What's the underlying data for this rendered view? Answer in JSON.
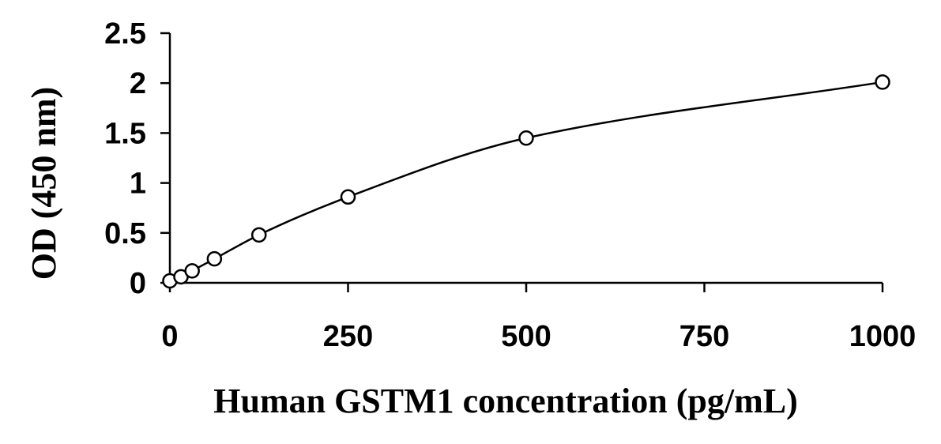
{
  "chart_data": {
    "type": "scatter",
    "title": "",
    "xlabel": "Human GSTM1 concentration (pg/mL)",
    "ylabel": "OD (450 nm)",
    "xlim": [
      0,
      1000
    ],
    "ylim": [
      0,
      2.5
    ],
    "xticks": [
      0,
      250,
      500,
      750,
      1000
    ],
    "yticks": [
      0,
      0.5,
      1,
      1.5,
      2,
      2.5
    ],
    "grid": false,
    "legend": "none",
    "series": [
      {
        "x": [
          0,
          15.6,
          31.25,
          62.5,
          125,
          250,
          500,
          1000
        ],
        "y": [
          0.02,
          0.06,
          0.12,
          0.24,
          0.48,
          0.86,
          1.45,
          2.01
        ],
        "marker": "open-circle",
        "trendline": "smooth-curve"
      }
    ]
  }
}
